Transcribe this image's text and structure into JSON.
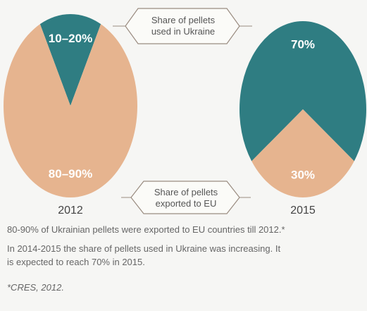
{
  "chart_data": [
    {
      "type": "pie",
      "title": "2012",
      "values": [
        15,
        85
      ],
      "value_labels": [
        "10–20%",
        "80–90%"
      ],
      "colors": [
        "#2f7d82",
        "#e6b48f"
      ],
      "startangle": -27
    },
    {
      "type": "pie",
      "title": "2015",
      "values": [
        70,
        30
      ],
      "value_labels": [
        "70%",
        "30%"
      ],
      "colors": [
        "#2f7d82",
        "#e6b48f"
      ],
      "startangle": 234
    }
  ],
  "annotations": [
    "Share of pellets used in Ukraine",
    "Share of pellets exported to EU"
  ],
  "notes": [
    "80-90% of Ukrainian pellets were exported to EU countries till 2012.*",
    "In 2014-2015 the share of pellets used in Ukraine was increasing. It is expected to reach 70% in 2015.",
    "*CRES, 2012."
  ]
}
